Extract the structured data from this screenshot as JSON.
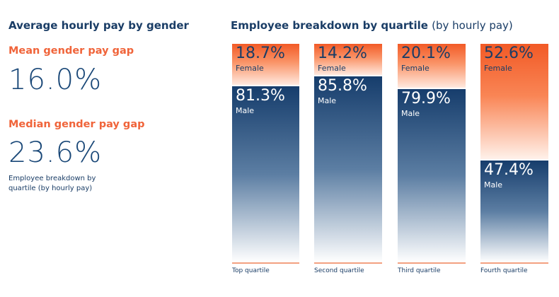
{
  "left_panel": {
    "title": "Average hourly pay by gender",
    "mean_label": "Mean gender pay gap",
    "mean_value": "16.0%",
    "median_label": "Median gender pay gap",
    "median_value": "23.6%",
    "note": "Employee breakdown by quartile (by hourly pay)"
  },
  "chart_data": {
    "type": "bar",
    "stacked": true,
    "title": "Employee breakdown by quartile",
    "title_suffix": "(by hourly pay)",
    "categories": [
      "Top quartile",
      "Second quartile",
      "Third quartile",
      "Fourth quartile"
    ],
    "series": [
      {
        "name": "Female",
        "values": [
          18.7,
          14.2,
          20.1,
          52.6
        ],
        "labels": [
          "18.7%",
          "14.2%",
          "20.1%",
          "52.6%"
        ],
        "color": "#f25a26"
      },
      {
        "name": "Male",
        "values": [
          81.3,
          85.8,
          79.9,
          47.4
        ],
        "labels": [
          "81.3%",
          "85.8%",
          "79.9%",
          "47.4%"
        ],
        "color": "#163d6c"
      }
    ],
    "ylim": [
      0,
      100
    ],
    "grid": false
  }
}
